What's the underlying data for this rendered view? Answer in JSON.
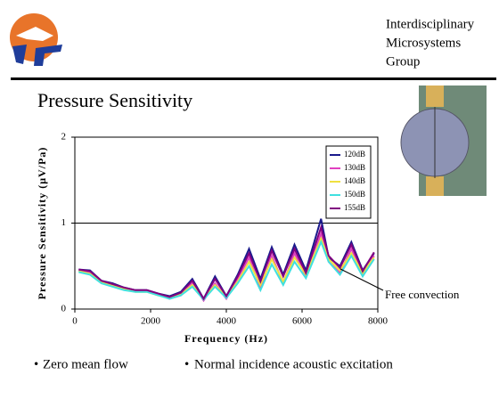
{
  "header": {
    "group": [
      "Interdisciplinary",
      "Microsystems",
      "Group"
    ]
  },
  "title": "Pressure Sensitivity",
  "bullets": [
    "Zero mean flow",
    "Normal incidence acoustic excitation"
  ],
  "chart_data": {
    "type": "line",
    "x_label": "Frequency (Hz)",
    "y_label": "Pressure Sensitivity (μV/Pa)",
    "annotation": "Free convection",
    "x": [
      100,
      400,
      700,
      1000,
      1300,
      1600,
      1900,
      2200,
      2500,
      2800,
      3100,
      3400,
      3700,
      4000,
      4300,
      4600,
      4900,
      5200,
      5500,
      5800,
      6100,
      6500,
      6700,
      7000,
      7300,
      7600,
      7900
    ],
    "series": [
      {
        "name": "120dB",
        "color": "#1a1a8c",
        "values": [
          0.46,
          0.45,
          0.33,
          0.3,
          0.25,
          0.22,
          0.22,
          0.18,
          0.15,
          0.2,
          0.35,
          0.12,
          0.38,
          0.15,
          0.4,
          0.7,
          0.35,
          0.72,
          0.4,
          0.75,
          0.45,
          1.05,
          0.6,
          0.5,
          0.78,
          0.45,
          0.65
        ]
      },
      {
        "name": "130dB",
        "color": "#e040c0",
        "values": [
          0.45,
          0.42,
          0.32,
          0.28,
          0.24,
          0.21,
          0.21,
          0.17,
          0.12,
          0.16,
          0.3,
          0.1,
          0.3,
          0.12,
          0.35,
          0.6,
          0.25,
          0.62,
          0.3,
          0.65,
          0.38,
          0.88,
          0.55,
          0.42,
          0.7,
          0.4,
          0.62
        ]
      },
      {
        "name": "140dB",
        "color": "#f0e040",
        "values": [
          0.44,
          0.41,
          0.31,
          0.27,
          0.23,
          0.2,
          0.2,
          0.16,
          0.13,
          0.17,
          0.28,
          0.12,
          0.28,
          0.14,
          0.32,
          0.55,
          0.28,
          0.58,
          0.32,
          0.6,
          0.4,
          0.82,
          0.58,
          0.45,
          0.65,
          0.42,
          0.6
        ]
      },
      {
        "name": "150dB",
        "color": "#40e0e0",
        "values": [
          0.43,
          0.4,
          0.3,
          0.26,
          0.22,
          0.2,
          0.2,
          0.16,
          0.12,
          0.16,
          0.26,
          0.11,
          0.26,
          0.13,
          0.3,
          0.5,
          0.22,
          0.52,
          0.28,
          0.55,
          0.36,
          0.78,
          0.55,
          0.4,
          0.62,
          0.38,
          0.58
        ]
      },
      {
        "name": "155dB",
        "color": "#800080",
        "values": [
          0.46,
          0.44,
          0.33,
          0.29,
          0.25,
          0.22,
          0.22,
          0.18,
          0.14,
          0.19,
          0.33,
          0.12,
          0.35,
          0.15,
          0.38,
          0.65,
          0.32,
          0.68,
          0.38,
          0.7,
          0.42,
          0.95,
          0.62,
          0.48,
          0.75,
          0.44,
          0.66
        ]
      }
    ],
    "xlim": [
      0,
      8000
    ],
    "xticks": [
      0,
      2000,
      4000,
      6000,
      8000
    ],
    "ylim": [
      0,
      2
    ],
    "yticks": [
      0,
      1,
      2
    ],
    "grid": true,
    "legend": "upper right"
  }
}
